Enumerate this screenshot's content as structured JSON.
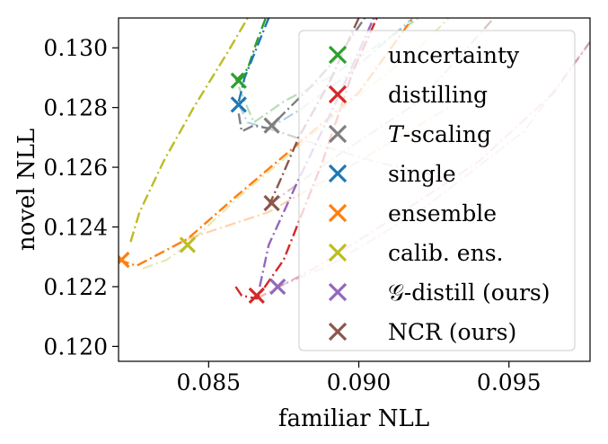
{
  "chart_data": {
    "type": "line",
    "xlabel": "familiar NLL",
    "ylabel": "novel NLL",
    "xlim": [
      0.082,
      0.0977
    ],
    "ylim": [
      0.1195,
      0.131
    ],
    "xticks": [
      0.085,
      0.09,
      0.095
    ],
    "xtick_labels": [
      "0.085",
      "0.090",
      "0.095"
    ],
    "yticks": [
      0.12,
      0.122,
      0.124,
      0.126,
      0.128,
      0.13
    ],
    "ytick_labels": [
      "0.120",
      "0.122",
      "0.124",
      "0.126",
      "0.128",
      "0.130"
    ],
    "grid": false,
    "legend_position": "right",
    "series": [
      {
        "name": "uncertainty",
        "color": "#2ca02c",
        "curve": [
          [
            0.0859,
            0.1289
          ],
          [
            0.0863,
            0.1293
          ],
          [
            0.0866,
            0.1302
          ],
          [
            0.0869,
            0.131
          ]
        ],
        "curve2": [
          [
            0.086,
            0.1287
          ],
          [
            0.0865,
            0.1275
          ],
          [
            0.0875,
            0.1282
          ],
          [
            0.089,
            0.129
          ],
          [
            0.0905,
            0.13
          ],
          [
            0.092,
            0.131
          ]
        ],
        "marker": [
          0.086,
          0.1289
        ]
      },
      {
        "name": "distilling",
        "color": "#d62728",
        "curve": [
          [
            0.0859,
            0.122
          ],
          [
            0.0861,
            0.1217
          ],
          [
            0.0866,
            0.1216
          ],
          [
            0.0875,
            0.1229
          ],
          [
            0.0888,
            0.1262
          ],
          [
            0.0898,
            0.1292
          ],
          [
            0.0906,
            0.131
          ]
        ],
        "curve2": [
          [
            0.0866,
            0.1216
          ],
          [
            0.0885,
            0.1226
          ],
          [
            0.091,
            0.1242
          ],
          [
            0.094,
            0.1262
          ],
          [
            0.0965,
            0.1285
          ],
          [
            0.0977,
            0.1302
          ]
        ],
        "marker": [
          0.0866,
          0.1217
        ]
      },
      {
        "name": "T-scaling",
        "color": "#7f7f7f",
        "curve": [
          [
            0.086,
            0.1278
          ],
          [
            0.0861,
            0.1272
          ],
          [
            0.0865,
            0.1274
          ],
          [
            0.087,
            0.1273
          ],
          [
            0.0878,
            0.1281
          ],
          [
            0.0885,
            0.1288
          ],
          [
            0.0893,
            0.1297
          ],
          [
            0.0902,
            0.131
          ]
        ],
        "curve2": [
          [
            0.087,
            0.1273
          ],
          [
            0.0885,
            0.1268
          ],
          [
            0.0905,
            0.1262
          ],
          [
            0.093,
            0.1256
          ]
        ],
        "marker": [
          0.0871,
          0.1274
        ]
      },
      {
        "name": "single",
        "color": "#1f77b4",
        "curve": [
          [
            0.086,
            0.1282
          ],
          [
            0.0862,
            0.129
          ],
          [
            0.0866,
            0.13
          ],
          [
            0.087,
            0.131
          ]
        ],
        "curve2": [
          [
            0.086,
            0.1281
          ],
          [
            0.0863,
            0.1275
          ],
          [
            0.087,
            0.1273
          ],
          [
            0.088,
            0.1279
          ],
          [
            0.0895,
            0.129
          ],
          [
            0.091,
            0.1303
          ],
          [
            0.0918,
            0.131
          ]
        ],
        "marker": [
          0.086,
          0.1281
        ]
      },
      {
        "name": "ensemble",
        "color": "#ff7f0e",
        "curve": [
          [
            0.082,
            0.1229
          ],
          [
            0.0826,
            0.1227
          ],
          [
            0.0843,
            0.1236
          ],
          [
            0.086,
            0.1251
          ],
          [
            0.088,
            0.1268
          ],
          [
            0.09,
            0.1285
          ],
          [
            0.0918,
            0.131
          ]
        ],
        "curve2": [
          [
            0.0843,
            0.1236
          ],
          [
            0.087,
            0.1245
          ],
          [
            0.09,
            0.1262
          ],
          [
            0.093,
            0.128
          ]
        ],
        "marker": [
          0.0821,
          0.1229
        ]
      },
      {
        "name": "calib. ens.",
        "color": "#bcbd22",
        "curve": [
          [
            0.0824,
            0.1235
          ],
          [
            0.0827,
            0.1245
          ],
          [
            0.0835,
            0.1262
          ],
          [
            0.0845,
            0.128
          ],
          [
            0.0856,
            0.1298
          ],
          [
            0.0863,
            0.131
          ]
        ],
        "curve2": [
          [
            0.0828,
            0.1226
          ],
          [
            0.0836,
            0.1229
          ],
          [
            0.0843,
            0.1234
          ],
          [
            0.086,
            0.125
          ],
          [
            0.088,
            0.1267
          ],
          [
            0.09,
            0.1284
          ],
          [
            0.092,
            0.13
          ],
          [
            0.093,
            0.131
          ]
        ],
        "marker": [
          0.0843,
          0.1234
        ]
      },
      {
        "name": "G-distill (ours)",
        "color": "#9467bd",
        "curve": [
          [
            0.0867,
            0.122
          ],
          [
            0.087,
            0.1234
          ],
          [
            0.088,
            0.1256
          ],
          [
            0.0893,
            0.1283
          ],
          [
            0.0905,
            0.131
          ]
        ],
        "curve2": [
          [
            0.0873,
            0.122
          ],
          [
            0.089,
            0.1227
          ],
          [
            0.092,
            0.1245
          ],
          [
            0.0955,
            0.1272
          ],
          [
            0.0977,
            0.1302
          ]
        ],
        "marker": [
          0.0873,
          0.122
        ]
      },
      {
        "name": "NCR (ours)",
        "color": "#8c564b",
        "curve": [
          [
            0.087,
            0.1247
          ],
          [
            0.0874,
            0.1256
          ],
          [
            0.088,
            0.127
          ],
          [
            0.089,
            0.1288
          ],
          [
            0.09,
            0.131
          ]
        ],
        "curve2": [
          [
            0.0871,
            0.1248
          ],
          [
            0.089,
            0.1262
          ],
          [
            0.092,
            0.1282
          ],
          [
            0.0945,
            0.131
          ]
        ],
        "marker": [
          0.0871,
          0.1248
        ]
      }
    ],
    "legend": [
      {
        "label": "uncertainty",
        "color": "#2ca02c"
      },
      {
        "label": "distilling",
        "color": "#d62728"
      },
      {
        "label": "𝑇-scaling",
        "color": "#7f7f7f"
      },
      {
        "label": "single",
        "color": "#1f77b4"
      },
      {
        "label": "ensemble",
        "color": "#ff7f0e"
      },
      {
        "label": "calib. ens.",
        "color": "#bcbd22"
      },
      {
        "label": "𝒢-distill (ours)",
        "color": "#9467bd"
      },
      {
        "label": "NCR (ours)",
        "color": "#8c564b"
      }
    ]
  }
}
